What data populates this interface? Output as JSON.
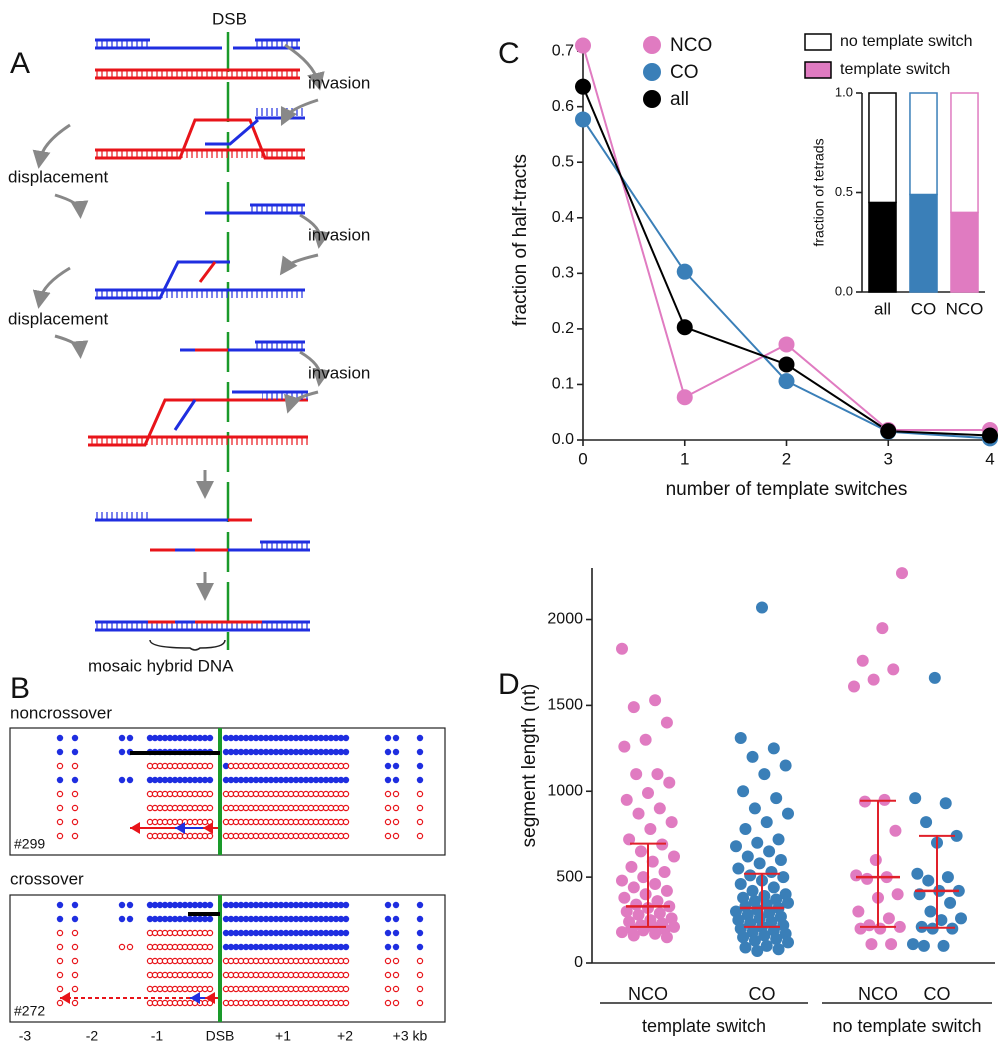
{
  "panels": {
    "A": {
      "letter": "A",
      "dsb": "DSB",
      "invasion_1": "invasion",
      "invasion_2": "invasion",
      "invasion_3": "invasion",
      "displacement_1": "displacement",
      "displacement_2": "displacement",
      "mosaic": "mosaic hybrid DNA"
    },
    "B": {
      "letter": "B",
      "noncrossover": "noncrossover",
      "crossover": "crossover",
      "id_1": "#299",
      "id_2": "#272",
      "axis": [
        "-3",
        "-2",
        "-1",
        "DSB",
        "+1",
        "+2",
        "+3 kb"
      ]
    },
    "C": {
      "letter": "C"
    },
    "D": {
      "letter": "D"
    }
  },
  "chart_data": [
    {
      "type": "line",
      "x_label": "number of template switches",
      "y_label": "fraction of half-tracts",
      "x": [
        0,
        1,
        2,
        3,
        4
      ],
      "xlim": [
        0,
        4
      ],
      "xticks": [
        0,
        1,
        2,
        3,
        4
      ],
      "ylim": [
        0,
        0.72
      ],
      "yticks": [
        {
          "value": 0,
          "label": "0.0"
        },
        0.1,
        0.2,
        0.3,
        0.4,
        0.5,
        0.6,
        0.7
      ],
      "series": [
        {
          "name": "NCO",
          "color": "#e07bc1",
          "values": [
            0.71,
            0.077,
            0.172,
            0.018,
            0.018
          ]
        },
        {
          "name": "CO",
          "color": "#3a7fb8",
          "values": [
            0.577,
            0.303,
            0.106,
            0.015,
            0.003
          ]
        },
        {
          "name": "all",
          "color": "#000000",
          "values": [
            0.636,
            0.203,
            0.136,
            0.016,
            0.008
          ]
        }
      ]
    },
    {
      "type": "stacked-bar",
      "y_label": "fraction of tetrads",
      "categories": [
        "all",
        "CO",
        "NCO"
      ],
      "bar_colors": [
        "#000000",
        "#3a7fb8",
        "#e07bc1"
      ],
      "ylim": [
        0,
        1
      ],
      "yticks": [
        {
          "value": 0,
          "label": "0.0"
        },
        0.5,
        {
          "value": 1,
          "label": "1.0"
        }
      ],
      "series": [
        {
          "name": "template switch",
          "color": "#e07bc1",
          "values": [
            0.45,
            0.49,
            0.4
          ]
        },
        {
          "name": "no template switch",
          "color": "#ffffff",
          "values": [
            0.55,
            0.51,
            0.6
          ]
        }
      ]
    },
    {
      "type": "strip",
      "y_label": "segment length (nt)",
      "categories": [
        "NCO",
        "CO",
        "NCO",
        "CO"
      ],
      "spans": [
        "template switch",
        "no template switch"
      ],
      "ylim": [
        0,
        2300
      ],
      "yticks": [
        0,
        500,
        1000,
        1500,
        2000
      ],
      "summary_color": "#e0202a",
      "groups": [
        {
          "color": "#e07bc1",
          "median": 330,
          "q1": 210,
          "q3": 695,
          "values": [
            1830,
            1530,
            1490,
            1400,
            1300,
            1260,
            1100,
            1100,
            1050,
            990,
            950,
            900,
            870,
            820,
            780,
            720,
            690,
            650,
            620,
            590,
            560,
            530,
            500,
            480,
            460,
            440,
            420,
            400,
            380,
            360,
            340,
            330,
            320,
            300,
            290,
            280,
            260,
            250,
            240,
            230,
            220,
            210,
            210,
            200,
            195,
            190,
            180,
            170,
            160,
            150
          ]
        },
        {
          "color": "#3a7fb8",
          "median": 320,
          "q1": 210,
          "q3": 520,
          "values": [
            2070,
            1310,
            1250,
            1200,
            1150,
            1100,
            1000,
            960,
            900,
            870,
            820,
            780,
            720,
            700,
            680,
            650,
            620,
            600,
            580,
            550,
            530,
            510,
            500,
            480,
            460,
            440,
            420,
            400,
            390,
            380,
            370,
            360,
            350,
            340,
            330,
            320,
            310,
            300,
            290,
            280,
            270,
            260,
            250,
            240,
            230,
            220,
            210,
            200,
            190,
            180,
            170,
            160,
            150,
            140,
            130,
            120,
            100,
            90,
            80,
            70
          ]
        },
        {
          "color": "#e07bc1",
          "median": 500,
          "q1": 210,
          "q3": 945,
          "values": [
            2270,
            1950,
            1760,
            1710,
            1650,
            1610,
            950,
            940,
            770,
            600,
            510,
            500,
            490,
            400,
            380,
            300,
            260,
            220,
            210,
            200,
            200,
            110,
            110
          ]
        },
        {
          "color": "#3a7fb8",
          "median": 420,
          "q1": 205,
          "q3": 740,
          "values": [
            1660,
            960,
            930,
            820,
            740,
            700,
            520,
            500,
            480,
            420,
            420,
            400,
            350,
            300,
            260,
            250,
            210,
            200,
            200,
            110,
            100,
            100
          ]
        }
      ]
    }
  ]
}
